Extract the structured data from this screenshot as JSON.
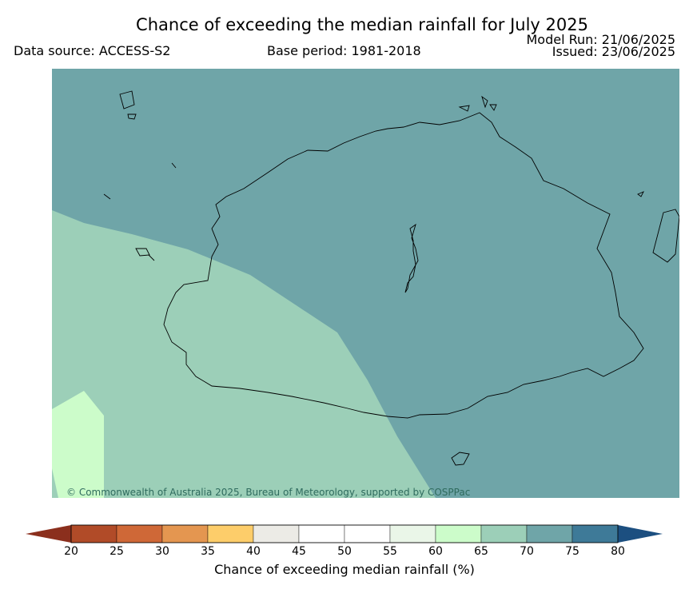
{
  "header": {
    "title": "Chance of exceeding the median rainfall for July 2025",
    "data_source": "Data source: ACCESS-S2",
    "base_period": "Base period: 1981-2018",
    "model_run": "Model Run: 21/06/2025",
    "issued": "Issued: 23/06/2025"
  },
  "map": {
    "copyright": "© Commonwealth of Australia 2025, Bureau of Meteorology, supported by COSPPac",
    "colors": {
      "band_70_75": "#6fa5a8",
      "band_65_70": "#9ccfb8",
      "band_60_65": "#ccfcca",
      "coastline": "#000000"
    }
  },
  "colorbar": {
    "label": "Chance of exceeding median rainfall (%)",
    "ticks": [
      "20",
      "25",
      "30",
      "35",
      "40",
      "45",
      "50",
      "55",
      "60",
      "65",
      "70",
      "75",
      "80"
    ],
    "under_color": "#8b2f1d",
    "over_color": "#1c4f80",
    "colors": [
      "#b14b28",
      "#cf6837",
      "#e49650",
      "#fdcd6a",
      "#ecebe6",
      "#ffffff",
      "#ffffff",
      "#eaf6e8",
      "#ccfcca",
      "#9ccfb8",
      "#6fa5a8",
      "#3e7a98"
    ]
  }
}
